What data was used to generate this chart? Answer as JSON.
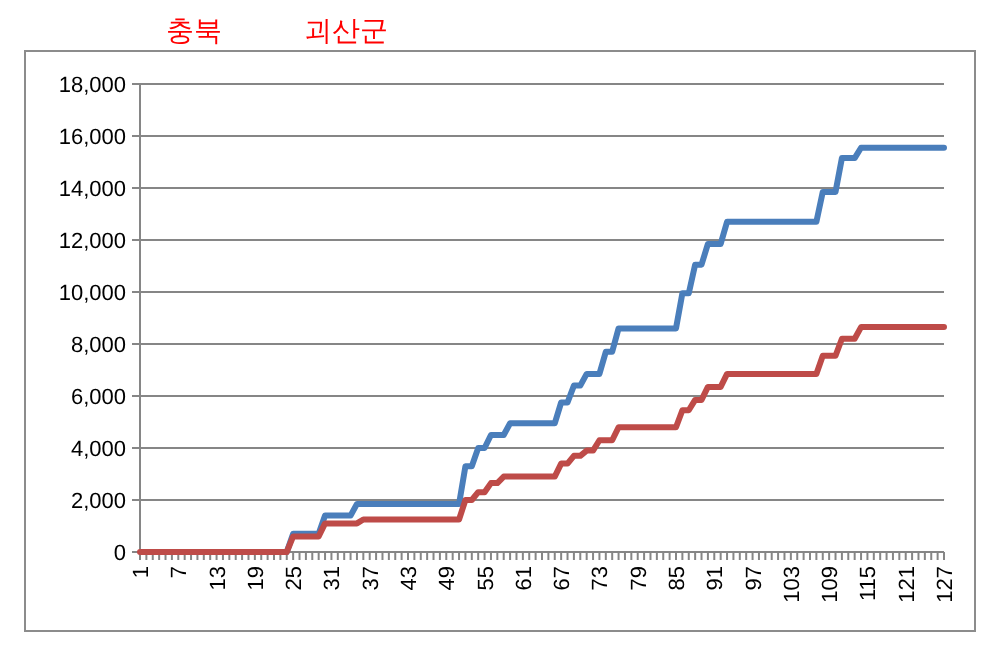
{
  "chart_data": {
    "type": "line",
    "annotations": [
      "충북",
      "괴산군"
    ],
    "categories": [
      "1",
      null,
      null,
      null,
      null,
      null,
      "7",
      null,
      null,
      null,
      null,
      null,
      "13",
      null,
      null,
      null,
      null,
      null,
      "19",
      null,
      null,
      null,
      null,
      null,
      "25",
      null,
      null,
      null,
      null,
      null,
      "31",
      null,
      null,
      null,
      null,
      null,
      "37",
      null,
      null,
      null,
      null,
      null,
      "43",
      null,
      null,
      null,
      null,
      null,
      "49",
      null,
      null,
      null,
      null,
      null,
      "55",
      null,
      null,
      null,
      null,
      null,
      "61",
      null,
      null,
      null,
      null,
      null,
      "67",
      null,
      null,
      null,
      null,
      null,
      "73",
      null,
      null,
      null,
      null,
      null,
      "79",
      null,
      null,
      null,
      null,
      null,
      "85",
      null,
      null,
      null,
      null,
      null,
      "91",
      null,
      null,
      null,
      null,
      null,
      "97",
      null,
      null,
      null,
      null,
      null,
      "103",
      null,
      null,
      null,
      null,
      null,
      "109",
      null,
      null,
      null,
      null,
      null,
      "115",
      null,
      null,
      null,
      null,
      null,
      "121",
      null,
      null,
      null,
      null,
      null,
      "127"
    ],
    "series": [
      {
        "color": "#4a7ebb",
        "values": [
          null,
          null,
          null,
          null,
          null,
          null,
          null,
          null,
          null,
          null,
          null,
          null,
          null,
          null,
          null,
          null,
          null,
          null,
          null,
          null,
          null,
          null,
          null,
          0,
          700,
          700,
          700,
          700,
          700,
          1400,
          1400,
          1400,
          1400,
          1400,
          1850,
          1850,
          1850,
          1850,
          1850,
          1850,
          1850,
          1850,
          1850,
          1850,
          1850,
          1850,
          1850,
          1850,
          1850,
          1850,
          1850,
          3300,
          3300,
          4000,
          4000,
          4500,
          4500,
          4500,
          4950,
          4950,
          4950,
          4950,
          4950,
          4950,
          4950,
          4950,
          5750,
          5750,
          6400,
          6400,
          6850,
          6850,
          6850,
          7700,
          7700,
          8600,
          8600,
          8600,
          8600,
          8600,
          8600,
          8600,
          8600,
          8600,
          8600,
          9950,
          9950,
          11050,
          11050,
          11850,
          11850,
          11850,
          12700,
          12700,
          12700,
          12700,
          12700,
          12700,
          12700,
          12700,
          12700,
          12700,
          12700,
          12700,
          12700,
          12700,
          12700,
          13850,
          13850,
          13850,
          15150,
          15150,
          15150,
          15550,
          15550,
          15550,
          15550,
          15550,
          15550,
          15550,
          15550,
          15550,
          15550,
          15550,
          15550,
          15550,
          15550
        ]
      },
      {
        "color": "#be4b48",
        "values": [
          0,
          0,
          0,
          0,
          0,
          0,
          0,
          0,
          0,
          0,
          0,
          0,
          0,
          0,
          0,
          0,
          0,
          0,
          0,
          0,
          0,
          0,
          0,
          0,
          600,
          600,
          600,
          600,
          600,
          1100,
          1100,
          1100,
          1100,
          1100,
          1100,
          1250,
          1250,
          1250,
          1250,
          1250,
          1250,
          1250,
          1250,
          1250,
          1250,
          1250,
          1250,
          1250,
          1250,
          1250,
          1250,
          2000,
          2000,
          2300,
          2300,
          2650,
          2650,
          2900,
          2900,
          2900,
          2900,
          2900,
          2900,
          2900,
          2900,
          2900,
          3400,
          3400,
          3700,
          3700,
          3900,
          3900,
          4300,
          4300,
          4300,
          4800,
          4800,
          4800,
          4800,
          4800,
          4800,
          4800,
          4800,
          4800,
          4800,
          5450,
          5450,
          5850,
          5850,
          6350,
          6350,
          6350,
          6850,
          6850,
          6850,
          6850,
          6850,
          6850,
          6850,
          6850,
          6850,
          6850,
          6850,
          6850,
          6850,
          6850,
          6850,
          7550,
          7550,
          7550,
          8200,
          8200,
          8200,
          8650,
          8650,
          8650,
          8650,
          8650,
          8650,
          8650,
          8650,
          8650,
          8650,
          8650,
          8650,
          8650,
          8650
        ]
      }
    ],
    "ylim": [
      0,
      18000
    ],
    "yticks": [
      0,
      {
        "value": 2000,
        "label": "2,000"
      },
      {
        "value": 4000,
        "label": "4,000"
      },
      {
        "value": 6000,
        "label": "6,000"
      },
      {
        "value": 8000,
        "label": "8,000"
      },
      {
        "value": 10000,
        "label": "10,000"
      },
      {
        "value": 12000,
        "label": "12,000"
      },
      {
        "value": 14000,
        "label": "14,000"
      },
      {
        "value": 16000,
        "label": "16,000"
      },
      {
        "value": 18000,
        "label": "18,000"
      }
    ],
    "grid": "y"
  }
}
